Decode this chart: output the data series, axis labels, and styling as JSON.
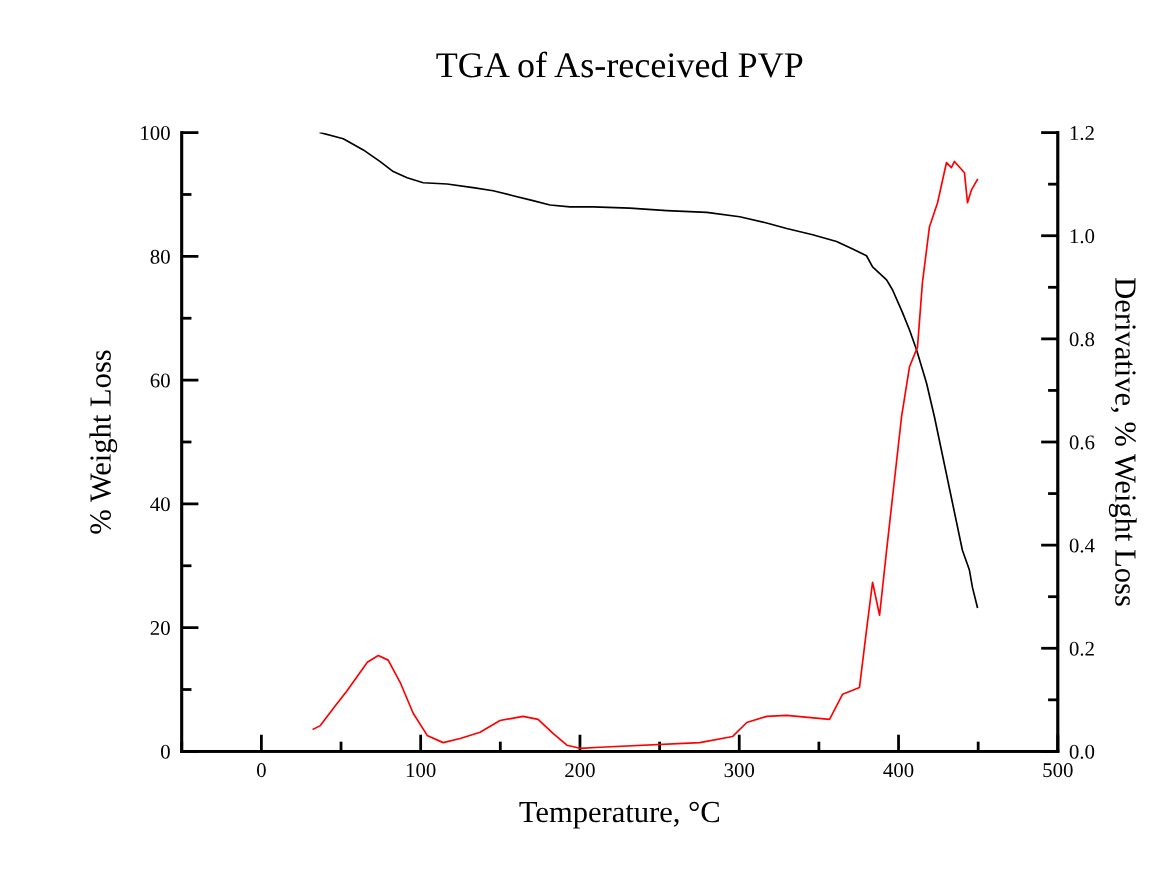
{
  "chart_data": {
    "type": "line",
    "title": "TGA of As-received PVP",
    "xlabel": "Temperature, °C",
    "ylabel": "% Weight Loss",
    "y2label": "Derivative, % Weight Loss",
    "xlim": [
      -50,
      500
    ],
    "xticks": [
      0,
      100,
      200,
      300,
      400,
      500
    ],
    "ylim": [
      0,
      100
    ],
    "yticks": [
      0,
      20,
      40,
      60,
      80,
      100
    ],
    "y2lim": [
      0,
      1.2
    ],
    "y2ticks": [
      {
        "value": 0,
        "label": "0.0"
      },
      {
        "value": 0.2,
        "label": "0.2"
      },
      {
        "value": 0.4,
        "label": "0.4"
      },
      {
        "value": 0.6,
        "label": "0.6"
      },
      {
        "value": 0.8,
        "label": "0.8"
      },
      {
        "value": 1.0,
        "label": "1.0"
      },
      {
        "value": 1.2,
        "label": "1.2"
      }
    ],
    "marker": "none",
    "line_style": "solid",
    "series": [
      {
        "color": "#000000",
        "x": [
          37.0,
          51.4,
          64.0,
          74.6,
          82.8,
          91.5,
          101.6,
          116.6,
          132.9,
          145.5,
          158.0,
          170.5,
          181.2,
          193.7,
          208.2,
          231.3,
          254.5,
          279.6,
          300.3,
          317.2,
          329.8,
          346.1,
          361.1,
          371.2,
          379.9,
          383.7,
          392.5,
          396.2,
          402.5,
          406.9,
          411.3,
          417.6,
          422.6,
          440.1,
          444.5,
          446.4,
          449.5
        ],
        "values": [
          100.0,
          99.0,
          97.2,
          95.3,
          93.7,
          92.7,
          91.9,
          91.7,
          91.1,
          90.6,
          89.8,
          89.0,
          88.3,
          88.0,
          88.0,
          87.8,
          87.4,
          87.1,
          86.4,
          85.4,
          84.5,
          83.5,
          82.4,
          81.2,
          80.1,
          78.3,
          76.2,
          74.6,
          70.9,
          68.1,
          64.9,
          59.5,
          54.0,
          32.5,
          29.3,
          26.5,
          23.3
        ]
      },
      {
        "color": "#ff0000",
        "axis": "y2",
        "x": [
          32.6,
          37.0,
          45.1,
          53.9,
          66.5,
          73.4,
          79.6,
          87.1,
          95.3,
          104.1,
          114.1,
          124.8,
          137.3,
          149.8,
          164.3,
          173.7,
          183.1,
          191.8,
          200.0,
          212.5,
          275.2,
          295.9,
          304.7,
          317.2,
          329.8,
          356.7,
          364.9,
          375.5,
          379.9,
          383.7,
          388.1,
          392.5,
          401.9,
          406.9,
          411.9,
          415.0,
          419.4,
          424.5,
          430.1,
          433.2,
          435.1,
          441.4,
          443.3,
          445.8,
          449.5
        ],
        "values": [
          0.043,
          0.05,
          0.083,
          0.118,
          0.173,
          0.186,
          0.177,
          0.134,
          0.074,
          0.031,
          0.017,
          0.025,
          0.037,
          0.06,
          0.068,
          0.062,
          0.035,
          0.012,
          0.006,
          0.008,
          0.017,
          0.029,
          0.056,
          0.068,
          0.07,
          0.062,
          0.111,
          0.124,
          0.235,
          0.328,
          0.264,
          0.39,
          0.649,
          0.746,
          0.784,
          0.909,
          1.017,
          1.064,
          1.142,
          1.132,
          1.144,
          1.122,
          1.064,
          1.089,
          1.109
        ]
      }
    ]
  }
}
